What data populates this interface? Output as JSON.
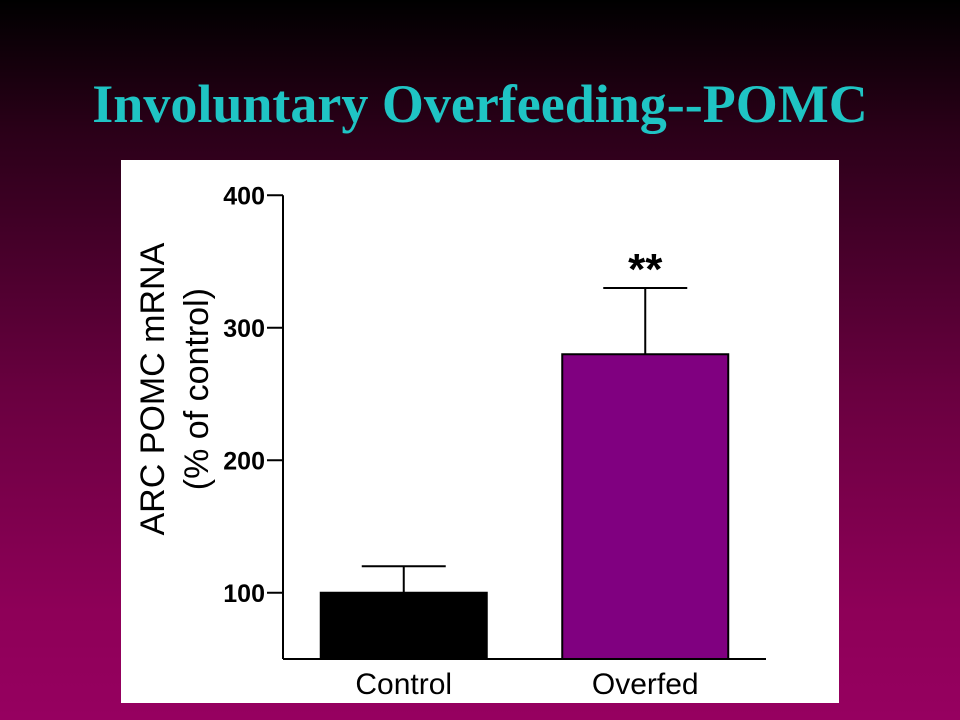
{
  "slide": {
    "title": "Involuntary Overfeeding--POMC"
  },
  "colors": {
    "title": "#1fc4c4",
    "background_top": "#000000",
    "background_bottom": "#960060",
    "panel": "#ffffff"
  },
  "chart_data": {
    "type": "bar",
    "title": "",
    "categories": [
      "Control",
      "Overfed"
    ],
    "values": [
      100,
      280
    ],
    "error_plus": [
      20,
      50
    ],
    "bar_colors": [
      "#000000",
      "#800080"
    ],
    "ylabel_lines": [
      "ARC POMC mRNA",
      "(% of control)"
    ],
    "xlabel": "",
    "ylim": [
      50,
      400
    ],
    "yticks": [
      100,
      200,
      300,
      400
    ],
    "annotations": [
      {
        "category": "Overfed",
        "text": "**"
      }
    ],
    "grid": false,
    "legend": "none"
  }
}
